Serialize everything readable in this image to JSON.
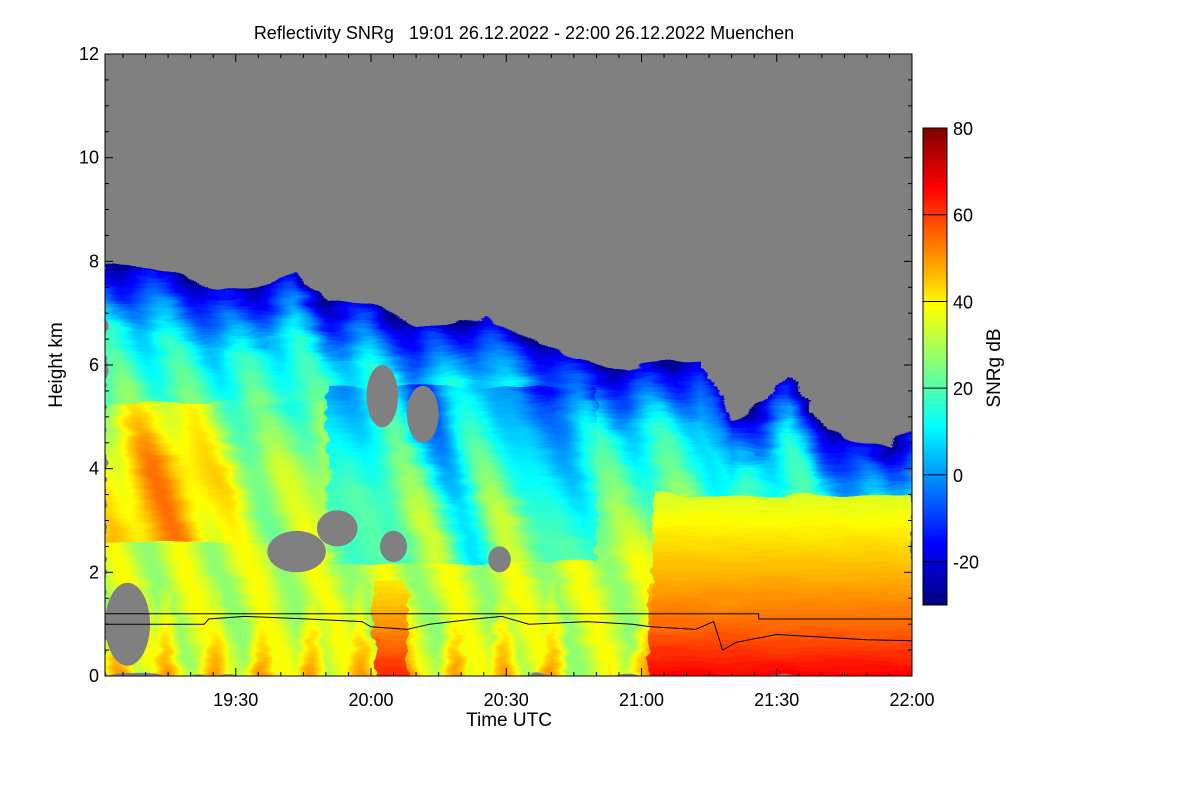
{
  "chart_data": {
    "type": "heatmap",
    "title": "Reflectivity SNRg   19:01 26.12.2022 - 22:00 26.12.2022 Muenchen",
    "xlabel": "Time UTC",
    "ylabel": "Height km",
    "x_range": [
      "19:01",
      "22:00"
    ],
    "x_ticks": [
      "19:30",
      "20:00",
      "20:30",
      "21:00",
      "21:30",
      "22:00"
    ],
    "x_tick_minutes": [
      1770,
      1800,
      1830,
      1860,
      1890,
      1920
    ],
    "y_range": [
      0,
      12
    ],
    "y_ticks": [
      0,
      2,
      4,
      6,
      8,
      10,
      12
    ],
    "colorbar": {
      "label": "SNRg dB",
      "range": [
        -30,
        80
      ],
      "ticks": [
        -20,
        0,
        20,
        40,
        60,
        80
      ]
    },
    "no_signal_color": "#808080",
    "colormap": [
      "#00007f",
      "#0000ff",
      "#007fff",
      "#00ffff",
      "#7fff7f",
      "#ffff00",
      "#ff7f00",
      "#ff0000",
      "#7f0000"
    ],
    "cloud_top_km": [
      [
        1741,
        7.9
      ],
      [
        1755,
        7.8
      ],
      [
        1766,
        7.4
      ],
      [
        1775,
        7.5
      ],
      [
        1783,
        7.8
      ],
      [
        1790,
        7.2
      ],
      [
        1800,
        7.2
      ],
      [
        1810,
        6.7
      ],
      [
        1825,
        6.9
      ],
      [
        1833,
        6.6
      ],
      [
        1845,
        6.1
      ],
      [
        1857,
        5.9
      ],
      [
        1865,
        6.1
      ],
      [
        1873,
        6.0
      ],
      [
        1880,
        4.9
      ],
      [
        1887,
        5.3
      ],
      [
        1893,
        5.8
      ],
      [
        1900,
        4.8
      ],
      [
        1907,
        4.5
      ],
      [
        1915,
        4.4
      ],
      [
        1920,
        4.8
      ]
    ],
    "gap_regions_km": [
      {
        "t0": 1741,
        "t1": 1751,
        "h0": 0.2,
        "h1": 1.8
      },
      {
        "t0": 1777,
        "t1": 1790,
        "h0": 2.0,
        "h1": 2.8
      },
      {
        "t0": 1788,
        "t1": 1797,
        "h0": 2.5,
        "h1": 3.2
      },
      {
        "t0": 1799,
        "t1": 1806,
        "h0": 4.8,
        "h1": 6.0
      },
      {
        "t0": 1802,
        "t1": 1808,
        "h0": 2.2,
        "h1": 2.8
      },
      {
        "t0": 1808,
        "t1": 1815,
        "h0": 4.5,
        "h1": 5.6
      },
      {
        "t0": 1826,
        "t1": 1831,
        "h0": 2.0,
        "h1": 2.5
      }
    ],
    "series": [
      {
        "values": [
          [
            1741,
            1.2
          ],
          [
            1885,
            1.2
          ],
          [
            1886,
            1.1
          ],
          [
            1920,
            1.1
          ]
        ]
      },
      {
        "values": [
          [
            1741,
            1.0
          ],
          [
            1763,
            1.0
          ],
          [
            1764,
            1.1
          ],
          [
            1772,
            1.15
          ],
          [
            1786,
            1.1
          ],
          [
            1798,
            1.05
          ],
          [
            1800,
            0.95
          ],
          [
            1808,
            0.9
          ],
          [
            1813,
            1.0
          ],
          [
            1823,
            1.1
          ],
          [
            1829,
            1.15
          ],
          [
            1835,
            1.0
          ],
          [
            1848,
            1.05
          ],
          [
            1858,
            1.0
          ],
          [
            1862,
            0.95
          ],
          [
            1872,
            0.9
          ],
          [
            1876,
            1.05
          ],
          [
            1878,
            0.5
          ],
          [
            1881,
            0.65
          ],
          [
            1890,
            0.8
          ],
          [
            1900,
            0.75
          ],
          [
            1910,
            0.7
          ],
          [
            1920,
            0.68
          ]
        ]
      }
    ]
  }
}
